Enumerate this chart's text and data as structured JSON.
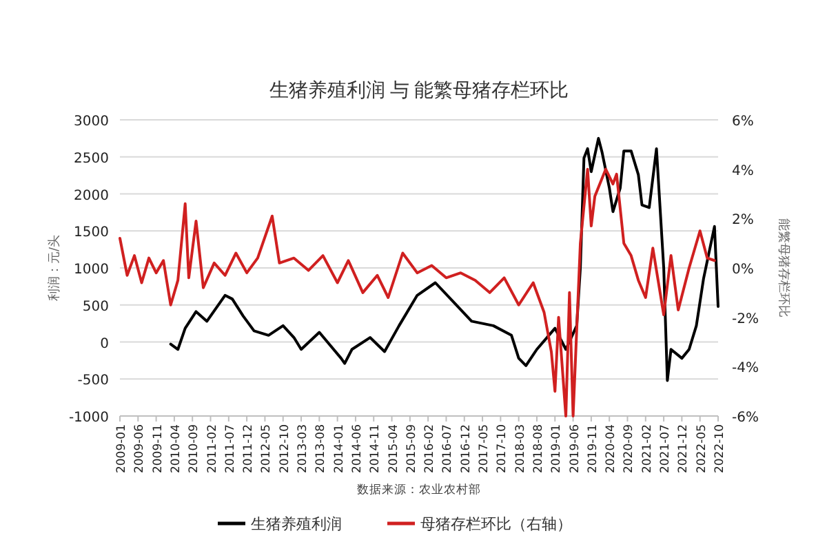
{
  "chart_data": {
    "type": "line",
    "title": "生猪养殖利润 与 能繁母猪存栏环比",
    "ylabel": "利润：元/头",
    "y2label": "能繁母猪存栏环比",
    "annotations": [
      "数据来源：农业农村部"
    ],
    "xlim": [
      "2009-01",
      "2022-10"
    ],
    "xticks": [
      "2009-01",
      "2009-06",
      "2009-11",
      "2010-04",
      "2010-09",
      "2011-02",
      "2011-07",
      "2011-12",
      "2012-05",
      "2012-10",
      "2013-03",
      "2013-08",
      "2014-01",
      "2014-06",
      "2014-11",
      "2015-04",
      "2015-09",
      "2016-02",
      "2016-07",
      "2016-12",
      "2017-05",
      "2017-10",
      "2018-03",
      "2018-08",
      "2019-01",
      "2019-06",
      "2019-11",
      "2020-04",
      "2020-09",
      "2021-02",
      "2021-07",
      "2021-12",
      "2022-05",
      "2022-10"
    ],
    "ylim": [
      -1000,
      3000
    ],
    "yticks": [
      -1000,
      -500,
      0,
      500,
      1000,
      1500,
      2000,
      2500,
      3000
    ],
    "y2lim": [
      -6,
      6
    ],
    "y2ticks": [
      {
        "value": -6,
        "label": "-6%"
      },
      {
        "value": -4,
        "label": "-4%"
      },
      {
        "value": -2,
        "label": "-2%"
      },
      {
        "value": 0,
        "label": "0%"
      },
      {
        "value": 2,
        "label": "2%"
      },
      {
        "value": 4,
        "label": "4%"
      },
      {
        "value": 6,
        "label": "6%"
      }
    ],
    "grid": "y",
    "legend": "bottom",
    "series": [
      {
        "name": "生猪养殖利润",
        "color": "#000000",
        "x": [
          "2010-03",
          "2010-05",
          "2010-07",
          "2010-10",
          "2011-01",
          "2011-06",
          "2011-08",
          "2011-11",
          "2012-02",
          "2012-06",
          "2012-10",
          "2013-01",
          "2013-03",
          "2013-08",
          "2014-02",
          "2014-03",
          "2014-05",
          "2014-10",
          "2015-02",
          "2015-06",
          "2015-11",
          "2016-04",
          "2016-09",
          "2017-02",
          "2017-08",
          "2018-01",
          "2018-03",
          "2018-05",
          "2018-08",
          "2019-01",
          "2019-04",
          "2019-07",
          "2019-08",
          "2019-09",
          "2019-10",
          "2019-11",
          "2020-01",
          "2020-02",
          "2020-04",
          "2020-05",
          "2020-07",
          "2020-08",
          "2020-10",
          "2020-12",
          "2021-01",
          "2021-03",
          "2021-05",
          "2021-07",
          "2021-08",
          "2021-09",
          "2021-12",
          "2022-02",
          "2022-04",
          "2022-06",
          "2022-09",
          "2022-10"
        ],
        "values": [
          -30,
          -100,
          185,
          410,
          280,
          630,
          580,
          350,
          150,
          90,
          220,
          60,
          -100,
          130,
          -220,
          -290,
          -100,
          60,
          -130,
          220,
          630,
          800,
          540,
          280,
          220,
          90,
          -220,
          -320,
          -100,
          185,
          -100,
          220,
          1000,
          2485,
          2610,
          2300,
          2750,
          2560,
          2080,
          1760,
          2080,
          2580,
          2580,
          2260,
          1850,
          1815,
          2610,
          1000,
          -520,
          -100,
          -220,
          -100,
          220,
          860,
          1560,
          480
        ]
      },
      {
        "name": "母猪存栏环比（右轴）",
        "color": "#d02020",
        "axis": "y2",
        "x": [
          "2009-01",
          "2009-03",
          "2009-05",
          "2009-07",
          "2009-09",
          "2009-11",
          "2010-01",
          "2010-03",
          "2010-05",
          "2010-07",
          "2010-08",
          "2010-10",
          "2010-12",
          "2011-03",
          "2011-06",
          "2011-09",
          "2011-12",
          "2012-03",
          "2012-07",
          "2012-09",
          "2013-01",
          "2013-05",
          "2013-09",
          "2014-01",
          "2014-04",
          "2014-08",
          "2014-12",
          "2015-03",
          "2015-07",
          "2015-11",
          "2016-03",
          "2016-07",
          "2016-11",
          "2017-03",
          "2017-07",
          "2017-11",
          "2018-03",
          "2018-07",
          "2018-10",
          "2018-12",
          "2019-01",
          "2019-02",
          "2019-04",
          "2019-05",
          "2019-06",
          "2019-08",
          "2019-10",
          "2019-11",
          "2019-12",
          "2020-03",
          "2020-05",
          "2020-06",
          "2020-08",
          "2020-10",
          "2020-12",
          "2021-02",
          "2021-04",
          "2021-07",
          "2021-09",
          "2021-11",
          "2022-02",
          "2022-05",
          "2022-07",
          "2022-09"
        ],
        "values": [
          1.2,
          -0.3,
          0.5,
          -0.6,
          0.4,
          -0.2,
          0.3,
          -1.5,
          -0.5,
          2.6,
          -0.4,
          1.9,
          -0.8,
          0.2,
          -0.3,
          0.6,
          -0.2,
          0.4,
          2.1,
          0.2,
          0.4,
          -0.1,
          0.5,
          -0.6,
          0.3,
          -1.0,
          -0.3,
          -1.2,
          0.6,
          -0.2,
          0.1,
          -0.4,
          -0.2,
          -0.5,
          -1.0,
          -0.4,
          -1.5,
          -0.6,
          -1.8,
          -3.4,
          -5.0,
          -2.0,
          -6.0,
          -1.0,
          -6.0,
          1.0,
          4.0,
          1.7,
          2.9,
          4.0,
          3.4,
          3.8,
          1.0,
          0.5,
          -0.5,
          -1.2,
          0.8,
          -1.9,
          0.5,
          -1.7,
          0.0,
          1.5,
          0.4,
          0.3
        ]
      }
    ]
  }
}
